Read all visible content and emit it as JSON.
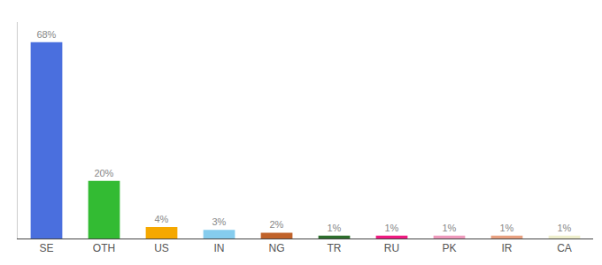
{
  "chart_data": {
    "type": "bar",
    "categories": [
      "SE",
      "OTH",
      "US",
      "IN",
      "NG",
      "TR",
      "RU",
      "PK",
      "IR",
      "CA"
    ],
    "values": [
      68,
      20,
      4,
      3,
      2,
      1,
      1,
      1,
      1,
      1
    ],
    "value_labels": [
      "68%",
      "20%",
      "4%",
      "3%",
      "2%",
      "1%",
      "1%",
      "1%",
      "1%",
      "1%"
    ],
    "colors": [
      "#4a6fde",
      "#33bb33",
      "#f5a800",
      "#85ccee",
      "#c0622a",
      "#2d6e2d",
      "#ee1a80",
      "#ee99bb",
      "#e8a080",
      "#eeeecc"
    ],
    "ylim": [
      0,
      75
    ],
    "data_labels": true,
    "tick_labels": "x",
    "grid": false
  }
}
